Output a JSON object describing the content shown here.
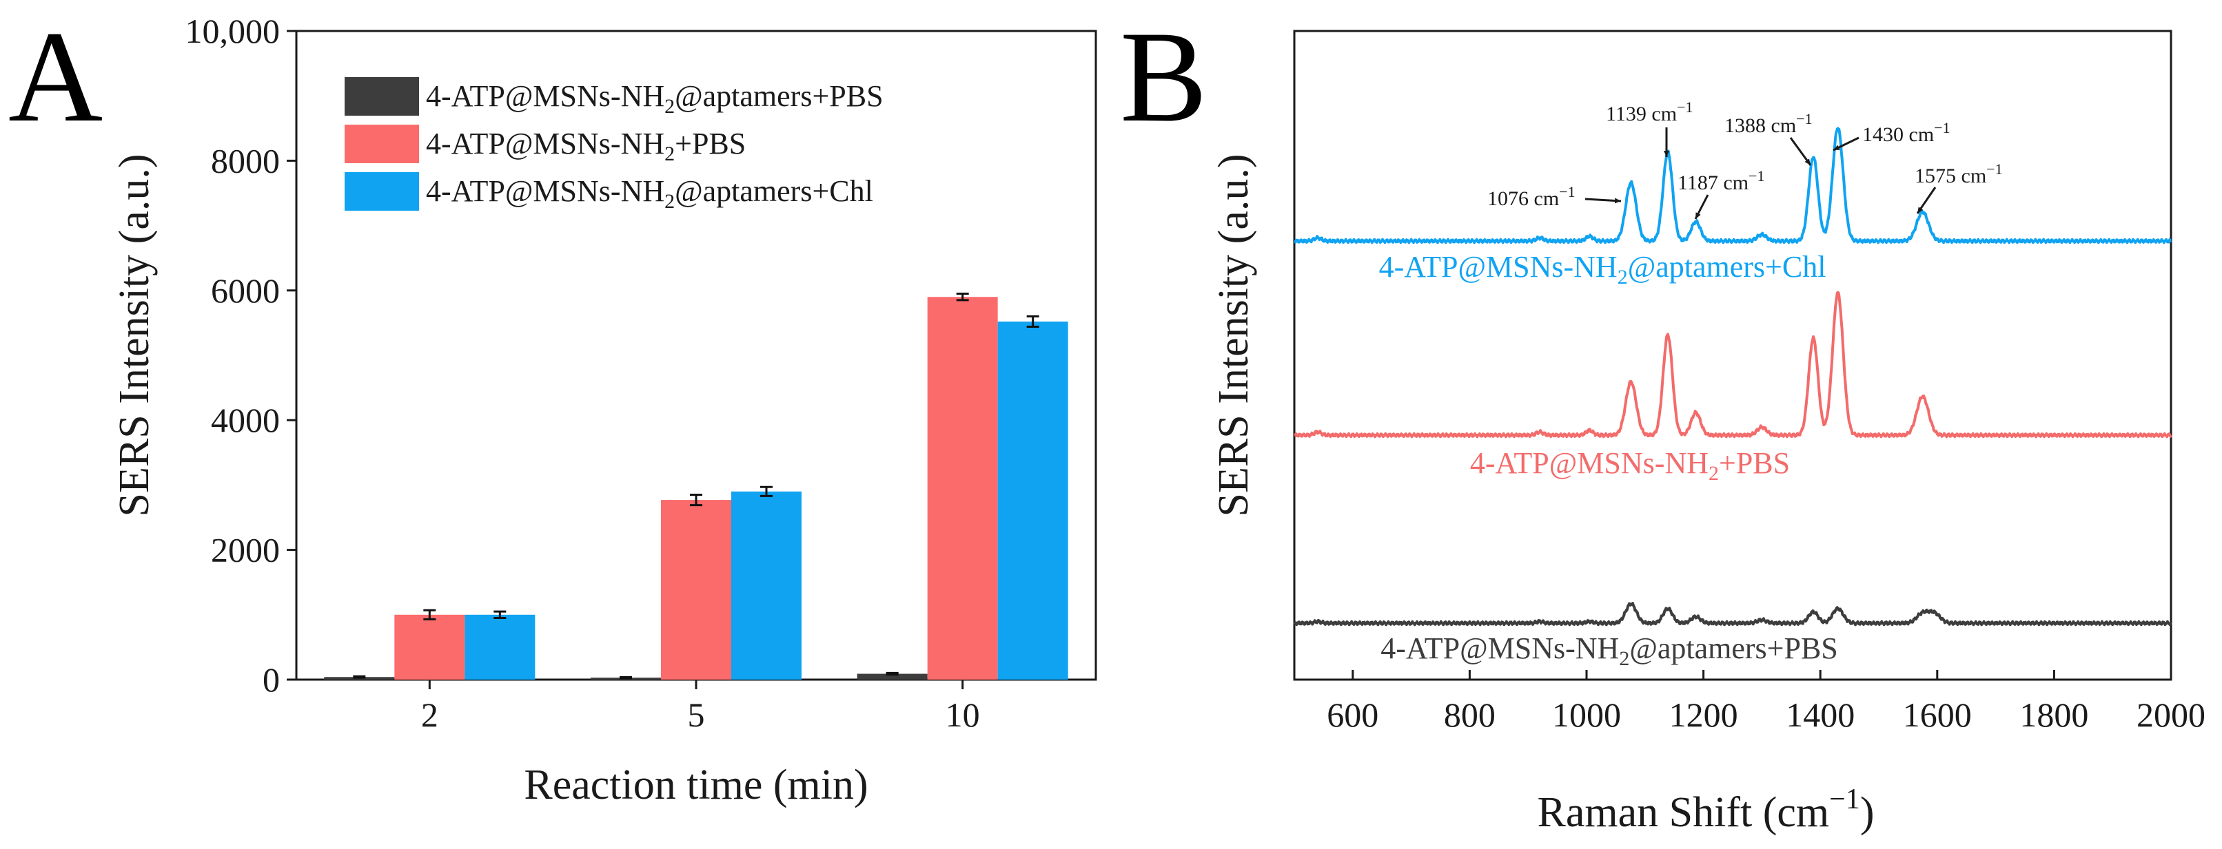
{
  "panel_a": {
    "letter": "A",
    "legend": [
      {
        "label": "4-ATP@MSNs-NH",
        "sub": "2",
        "tail": "@aptamers+PBS"
      },
      {
        "label": "4-ATP@MSNs-NH",
        "sub": "2",
        "tail": "+PBS"
      },
      {
        "label": "4-ATP@MSNs-NH",
        "sub": "2",
        "tail": "@aptamers+Chl"
      }
    ]
  },
  "panel_b": {
    "letter": "B",
    "trace_labels": [
      {
        "label": "4-ATP@MSNs-NH",
        "sub": "2",
        "tail": "@aptamers+Chl"
      },
      {
        "label": "4-ATP@MSNs-NH",
        "sub": "2",
        "tail": "+PBS"
      },
      {
        "label": "4-ATP@MSNs-NH",
        "sub": "2",
        "tail": "@aptamers+PBS"
      }
    ]
  },
  "chart_data": [
    {
      "type": "bar",
      "title": "",
      "xlabel": "Reaction time (min)",
      "ylabel": "SERS Intensity (a.u.)",
      "categories": [
        "2",
        "5",
        "10"
      ],
      "ylim": [
        0,
        10000
      ],
      "yticks": [
        "0",
        "2000",
        "4000",
        "6000",
        "8000",
        "10,000"
      ],
      "legend_position": "top-left",
      "series": [
        {
          "name": "4-ATP@MSNs-NH2@aptamers+PBS",
          "color": "#3d3d3d",
          "values": [
            40,
            30,
            90
          ],
          "errors": [
            10,
            8,
            12
          ]
        },
        {
          "name": "4-ATP@MSNs-NH2+PBS",
          "color": "#fb6b6b",
          "values": [
            1000,
            2770,
            5900
          ],
          "errors": [
            70,
            80,
            50
          ]
        },
        {
          "name": "4-ATP@MSNs-NH2@aptamers+Chl",
          "color": "#10a3f2",
          "values": [
            1000,
            2900,
            5520
          ],
          "errors": [
            50,
            70,
            80
          ]
        }
      ]
    },
    {
      "type": "line",
      "title": "",
      "xlabel": "Raman Shift (cm",
      "xlabel_sup": "−1",
      "xlabel_tail": ")",
      "ylabel": "SERS Intensity (a.u.)",
      "xlim": [
        500,
        2000
      ],
      "xticks": [
        "600",
        "800",
        "1000",
        "1200",
        "1400",
        "1600",
        "1800",
        "2000"
      ],
      "y_ticks_shown": false,
      "peaks": [
        {
          "pos": 1076,
          "width": 9,
          "heights": [
            0.36,
            0.33,
            0.12
          ]
        },
        {
          "pos": 1139,
          "width": 8,
          "heights": [
            0.55,
            0.62,
            0.09
          ]
        },
        {
          "pos": 1187,
          "width": 8,
          "heights": [
            0.12,
            0.14,
            0.04
          ]
        },
        {
          "pos": 1300,
          "width": 8,
          "heights": [
            0.04,
            0.05,
            0.02
          ]
        },
        {
          "pos": 1388,
          "width": 8,
          "heights": [
            0.52,
            0.6,
            0.07
          ]
        },
        {
          "pos": 1430,
          "width": 9,
          "heights": [
            0.7,
            0.88,
            0.09
          ]
        },
        {
          "pos": 1575,
          "width": 10,
          "heights": [
            0.18,
            0.24,
            0.06
          ]
        },
        {
          "pos": 1005,
          "width": 6,
          "heights": [
            0.03,
            0.03,
            0.01
          ]
        },
        {
          "pos": 920,
          "width": 6,
          "heights": [
            0.02,
            0.02,
            0.01
          ]
        },
        {
          "pos": 540,
          "width": 6,
          "heights": [
            0.02,
            0.02,
            0.01
          ]
        },
        {
          "pos": 1595,
          "width": 10,
          "heights": [
            0.0,
            0.0,
            0.06
          ]
        }
      ],
      "series": [
        {
          "name": "4-ATP@MSNs-NH2@aptamers+Chl",
          "color": "#10a3f2",
          "offset": 3.0
        },
        {
          "name": "4-ATP@MSNs-NH2+PBS",
          "color": "#f36b6b",
          "offset": 1.5
        },
        {
          "name": "4-ATP@MSNs-NH2@aptamers+PBS",
          "color": "#3d3d3d",
          "offset": 0.0
        }
      ],
      "annotations": [
        {
          "text": "1076 cm",
          "sup": "−1",
          "peak": 1076
        },
        {
          "text": "1139 cm",
          "sup": "−1",
          "peak": 1139
        },
        {
          "text": "1187 cm",
          "sup": "−1",
          "peak": 1187
        },
        {
          "text": "1388 cm",
          "sup": "−1",
          "peak": 1388
        },
        {
          "text": "1430 cm",
          "sup": "−1",
          "peak": 1430
        },
        {
          "text": "1575 cm",
          "sup": "−1",
          "peak": 1575
        }
      ]
    }
  ]
}
